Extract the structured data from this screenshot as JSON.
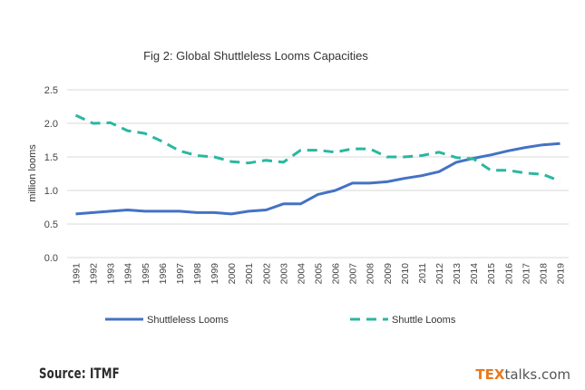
{
  "chart_data": {
    "type": "line",
    "title": "Fig 2: Global Shuttleless Looms Capacities",
    "xlabel": "",
    "ylabel": "million looms",
    "ylim": [
      0,
      2.5
    ],
    "yticks": [
      "0.0",
      "0.5",
      "1.0",
      "1.5",
      "2.0",
      "2.5"
    ],
    "categories": [
      "1991",
      "1992",
      "1993",
      "1994",
      "1995",
      "1996",
      "1997",
      "1998",
      "1999",
      "2000",
      "2001",
      "2002",
      "2003",
      "2004",
      "2005",
      "2006",
      "2007",
      "2008",
      "2009",
      "2010",
      "2011",
      "2012",
      "2013",
      "2014",
      "2015",
      "2016",
      "2017",
      "2018",
      "2019"
    ],
    "series": [
      {
        "name": "Shuttleless Looms",
        "style": "solid",
        "color": "#4472c4",
        "values": [
          0.65,
          0.67,
          0.69,
          0.71,
          0.69,
          0.69,
          0.69,
          0.67,
          0.67,
          0.65,
          0.69,
          0.71,
          0.8,
          0.8,
          0.94,
          1.0,
          1.11,
          1.11,
          1.13,
          1.18,
          1.22,
          1.28,
          1.42,
          1.48,
          1.53,
          1.59,
          1.64,
          1.68,
          1.7
        ]
      },
      {
        "name": "Shuttle Looms",
        "style": "dashed",
        "color": "#2bb7a0",
        "values": [
          2.12,
          2.0,
          2.01,
          1.89,
          1.85,
          1.73,
          1.59,
          1.52,
          1.5,
          1.43,
          1.41,
          1.45,
          1.42,
          1.6,
          1.6,
          1.57,
          1.62,
          1.62,
          1.5,
          1.5,
          1.52,
          1.57,
          1.49,
          1.47,
          1.3,
          1.3,
          1.26,
          1.24,
          1.14
        ]
      }
    ],
    "legend": "bottom",
    "grid": true
  },
  "footer": {
    "source": "Source: ITMF",
    "brand_part1": "TEX",
    "brand_part2": "talks.com"
  }
}
